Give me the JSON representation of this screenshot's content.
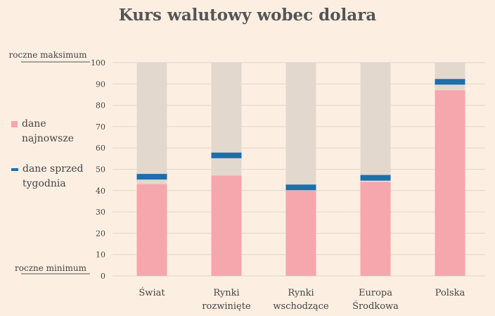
{
  "chart_data": {
    "type": "bar",
    "title": "Kurs walutowy wobec dolara",
    "categories": [
      [
        "Świat"
      ],
      [
        "Rynki",
        "rozwinięte"
      ],
      [
        "Rynki",
        "wschodzące"
      ],
      [
        "Europa",
        "Środkowa"
      ],
      [
        "Polska"
      ]
    ],
    "series": [
      {
        "name": "dane najnowsze",
        "values": [
          43,
          47,
          40,
          44,
          87
        ]
      },
      {
        "name": "dane sprzed tygodnia",
        "values": [
          46.5,
          56.5,
          41.5,
          46,
          91
        ]
      }
    ],
    "background_max": 100,
    "ylim": [
      0,
      100
    ],
    "yticks": [
      0,
      10,
      20,
      30,
      40,
      50,
      60,
      70,
      80,
      90,
      100
    ],
    "y_top_label": "roczne maksimum",
    "y_bottom_label": "roczne minimum",
    "grid": true,
    "legend_position": "left",
    "colors": {
      "latest": "#f6a6ad",
      "week_ago": "#1b6fad",
      "range": "#e2d8ce",
      "grid": "#ded6cf"
    }
  },
  "legend": {
    "latest": "dane najnowsze",
    "week_ago": "dane sprzed tygodnia"
  }
}
